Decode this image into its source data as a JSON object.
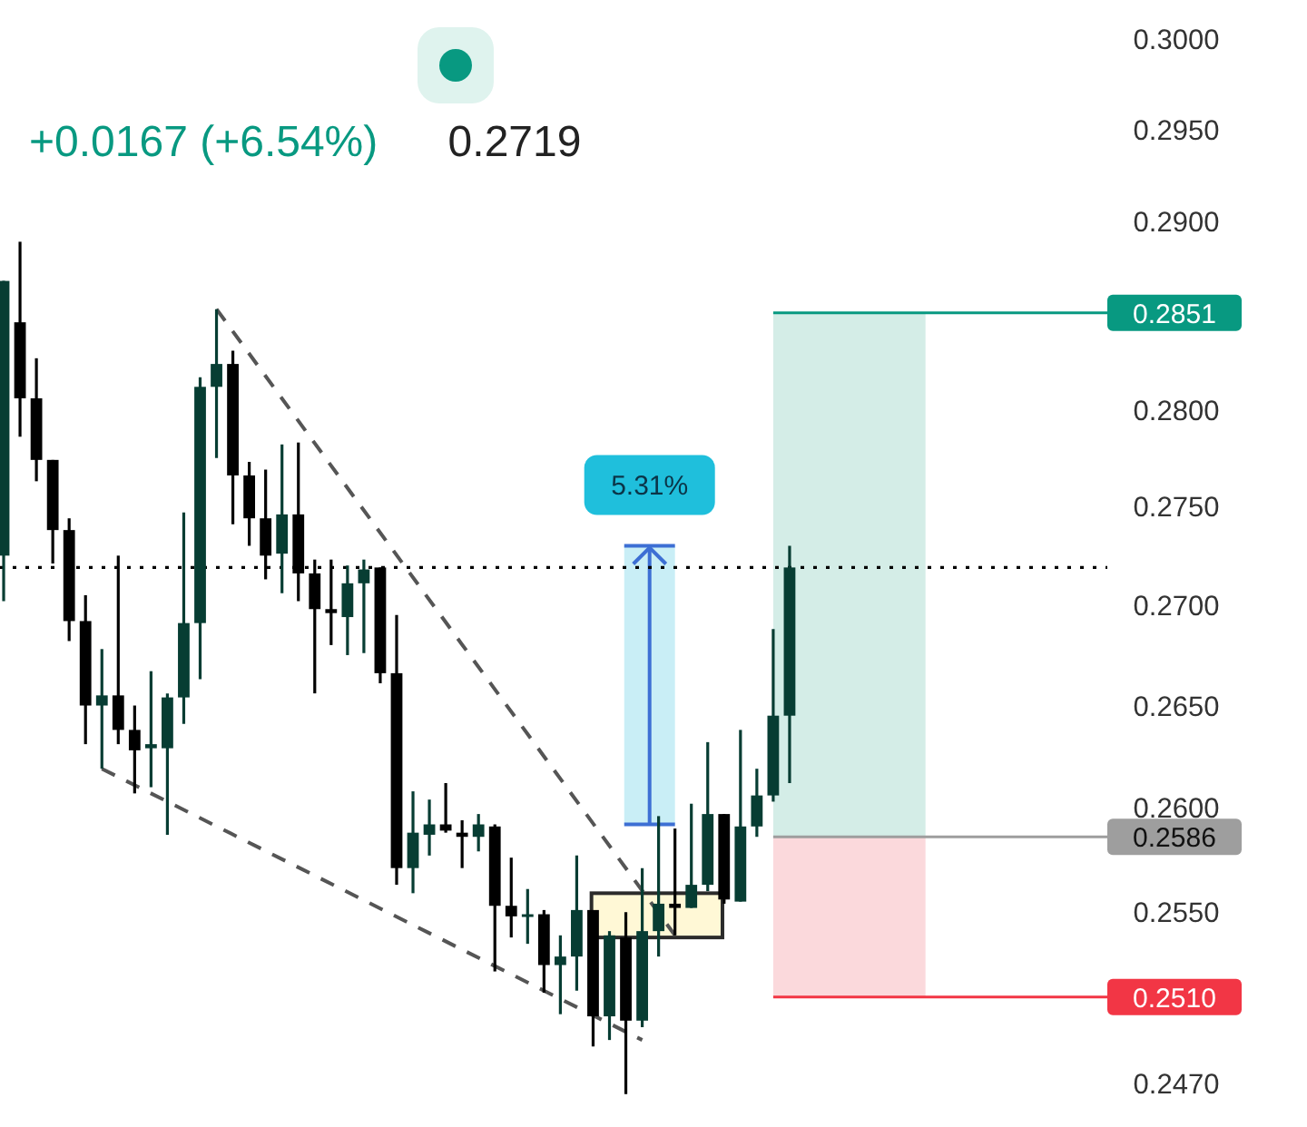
{
  "chart_data": {
    "type": "candlestick",
    "subtitle": "+0.0167 (+6.54%)",
    "annotations": [
      "0.2719"
    ],
    "categories": [
      null,
      null,
      null,
      null,
      null,
      null,
      null,
      null,
      null,
      null,
      null,
      null,
      null,
      null,
      null,
      null,
      null,
      null,
      null,
      null,
      null,
      null,
      null,
      null,
      null,
      null,
      null,
      null,
      null,
      null,
      null,
      null,
      null,
      null,
      null,
      null,
      null,
      null,
      null,
      null,
      null,
      null,
      null,
      null,
      null,
      null,
      null,
      null,
      null,
      null,
      null,
      null,
      null,
      null,
      null,
      null,
      null,
      null,
      null,
      null,
      null,
      null,
      null,
      null,
      null,
      null,
      null
    ],
    "ohlc": [
      [
        0.2725,
        0.2868,
        0.2702,
        0.2868
      ],
      [
        0.2846,
        0.2889,
        0.2786,
        0.2806
      ],
      [
        0.2806,
        0.2827,
        0.2763,
        0.2774
      ],
      [
        0.2774,
        0.2774,
        0.2721,
        0.2738
      ],
      [
        0.2738,
        0.2744,
        0.2682,
        0.2692
      ],
      [
        0.2692,
        0.2705,
        0.2631,
        0.265
      ],
      [
        0.265,
        0.2678,
        0.2619,
        0.2655
      ],
      [
        0.2655,
        0.2725,
        0.2631,
        0.2638
      ],
      [
        0.2638,
        0.265,
        0.2607,
        0.2628
      ],
      [
        0.2629,
        0.2667,
        0.261,
        0.2631
      ],
      [
        0.2629,
        0.2656,
        0.2587,
        0.2654
      ],
      [
        0.2654,
        0.2747,
        0.2641,
        0.2691
      ],
      [
        0.2691,
        0.2817,
        0.2663,
        0.2812
      ],
      [
        0.2812,
        0.2853,
        0.2775,
        0.2824
      ],
      [
        0.2824,
        0.2831,
        0.2741,
        0.2766
      ],
      [
        0.2766,
        0.2773,
        0.273,
        0.2744
      ],
      [
        0.2744,
        0.2769,
        0.2713,
        0.2725
      ],
      [
        0.2726,
        0.2782,
        0.2706,
        0.2746
      ],
      [
        0.2746,
        0.2783,
        0.2702,
        0.2716
      ],
      [
        0.2716,
        0.2723,
        0.2656,
        0.2698
      ],
      [
        0.2698,
        0.2723,
        0.268,
        0.2696
      ],
      [
        0.2694,
        0.272,
        0.2675,
        0.2711
      ],
      [
        0.2711,
        0.2723,
        0.2676,
        0.2718
      ],
      [
        0.2719,
        0.2719,
        0.2661,
        0.2666
      ],
      [
        0.2666,
        0.2695,
        0.2563,
        0.2571
      ],
      [
        0.2571,
        0.2608,
        0.2559,
        0.2588
      ],
      [
        0.2587,
        0.2604,
        0.2577,
        0.2592
      ],
      [
        0.2592,
        0.2612,
        0.2588,
        0.2589
      ],
      [
        0.2588,
        0.2594,
        0.2571,
        0.2586
      ],
      [
        0.2586,
        0.2597,
        0.2579,
        0.2592
      ],
      [
        0.2591,
        0.2592,
        0.2522,
        0.2553
      ],
      [
        0.2553,
        0.2576,
        0.2538,
        0.2548
      ],
      [
        0.2548,
        0.2561,
        0.2535,
        0.2549
      ],
      [
        0.2549,
        0.2551,
        0.2512,
        0.2525
      ],
      [
        0.2525,
        0.2539,
        0.2502,
        0.2529
      ],
      [
        0.2529,
        0.2577,
        0.2513,
        0.2551
      ],
      [
        0.2551,
        0.2551,
        0.2487,
        0.2501
      ],
      [
        0.2501,
        0.2541,
        0.249,
        0.2539
      ],
      [
        0.2538,
        0.255,
        0.2465,
        0.2499
      ],
      [
        0.2499,
        0.2571,
        0.2496,
        0.2541
      ],
      [
        0.2541,
        0.2596,
        0.2529,
        0.2554
      ],
      [
        0.2554,
        0.259,
        0.2539,
        0.2552
      ],
      [
        0.2552,
        0.2602,
        0.2552,
        0.2563
      ],
      [
        0.2563,
        0.2632,
        0.256,
        0.2597
      ],
      [
        0.2597,
        0.2597,
        0.2554,
        0.2556
      ],
      [
        0.2555,
        0.2638,
        0.2555,
        0.2591
      ],
      [
        0.2591,
        0.2619,
        0.2586,
        0.2606
      ],
      [
        0.2606,
        0.2688,
        0.2603,
        0.2645
      ],
      [
        0.2645,
        0.273,
        0.2612,
        0.2719
      ],
      null,
      null,
      null,
      null,
      null,
      null,
      null,
      null,
      null,
      null,
      null,
      null,
      null,
      null,
      null,
      null,
      null,
      null
    ],
    "colors": [
      "#073d33",
      "#000000",
      "#000000",
      "#000000",
      "#000000",
      "#000000",
      "#073d33",
      "#000000",
      "#000000",
      "#073d33",
      "#073d33",
      "#073d33",
      "#073d33",
      "#073d33",
      "#000000",
      "#000000",
      "#000000",
      "#073d33",
      "#000000",
      "#000000",
      "#000000",
      "#073d33",
      "#073d33",
      "#000000",
      "#000000",
      "#073d33",
      "#073d33",
      "#000000",
      "#000000",
      "#073d33",
      "#000000",
      "#000000",
      "#073d33",
      "#000000",
      "#073d33",
      "#073d33",
      "#000000",
      "#073d33",
      "#000000",
      "#073d33",
      "#073d33",
      "#000000",
      "#073d33",
      "#073d33",
      "#000000",
      "#073d33",
      "#073d33",
      "#073d33",
      "#073d33",
      null,
      null,
      null,
      null,
      null,
      null,
      null,
      null,
      null,
      null,
      null,
      null,
      null,
      null,
      null,
      null,
      null,
      null
    ],
    "series": [
      {
        "type": "line",
        "color": "#555555",
        "line_style": "dashed",
        "values": [
          null,
          null,
          null,
          null,
          null,
          null,
          null,
          null,
          null,
          null,
          null,
          null,
          null,
          0.2853,
          null,
          null,
          null,
          null,
          null,
          null,
          null,
          null,
          null,
          null,
          null,
          null,
          null,
          null,
          null,
          null,
          null,
          null,
          null,
          null,
          null,
          null,
          null,
          null,
          null,
          null,
          null,
          0.2539,
          null,
          null,
          null,
          null,
          null,
          null,
          null,
          null,
          null,
          null,
          null,
          null,
          null,
          null,
          null,
          null,
          null,
          null,
          null,
          null,
          null,
          null,
          null,
          null,
          null
        ]
      },
      {
        "type": "line",
        "color": "#555555",
        "line_style": "dashed",
        "values": [
          null,
          null,
          null,
          null,
          null,
          null,
          0.2619,
          null,
          null,
          null,
          null,
          null,
          null,
          null,
          null,
          null,
          null,
          null,
          null,
          null,
          null,
          null,
          null,
          null,
          null,
          null,
          null,
          null,
          null,
          null,
          null,
          null,
          null,
          null,
          null,
          null,
          null,
          null,
          null,
          0.249,
          null,
          null,
          null,
          null,
          null,
          null,
          null,
          null,
          null,
          null,
          null,
          null,
          null,
          null,
          null,
          null,
          null,
          null,
          null,
          null,
          null,
          null,
          null,
          null,
          null,
          null,
          null
        ]
      }
    ],
    "ylim": [
      0.245,
      0.3022
    ],
    "log": true,
    "tick_labels": "y",
    "yticks": [
      {
        "value": 0.3,
        "label": "0.3000"
      },
      {
        "value": 0.295,
        "label": "0.2950"
      },
      {
        "value": 0.29,
        "label": "0.2900"
      },
      {
        "value": 0.28,
        "label": "0.2800"
      },
      {
        "value": 0.275,
        "label": "0.2750"
      },
      {
        "value": 0.27,
        "label": "0.2700"
      },
      {
        "value": 0.265,
        "label": "0.2650"
      },
      {
        "value": 0.26,
        "label": "0.2600"
      },
      {
        "value": 0.255,
        "label": "0.2550"
      },
      {
        "value": 0.247,
        "label": "0.2470"
      }
    ],
    "ref_lines": [
      {
        "axis": "y",
        "value": 0.2719,
        "color": "#000000",
        "line_style": "dotted"
      },
      {
        "axis": "y",
        "value": 0.2851,
        "label": "0.2851",
        "color": "#089981"
      },
      {
        "axis": "y",
        "value": 0.2586,
        "label": "0.2586",
        "color": "#9e9e9e"
      },
      {
        "axis": "y",
        "value": 0.251,
        "label": "0.2510",
        "color": "#f23645"
      }
    ],
    "bands": [
      {
        "axis": "y",
        "from": 0.2592,
        "to": 0.273,
        "label": "5.31%",
        "color": "#c9eef6"
      },
      {
        "axis": "y",
        "from": 0.2538,
        "to": 0.2559,
        "color": "#fff8d6"
      },
      {
        "axis": "y",
        "from": 0.2586,
        "to": 0.2851,
        "color": "#d4ede7"
      },
      {
        "axis": "y",
        "from": 0.251,
        "to": 0.2586,
        "color": "#fbd9dc"
      }
    ]
  }
}
